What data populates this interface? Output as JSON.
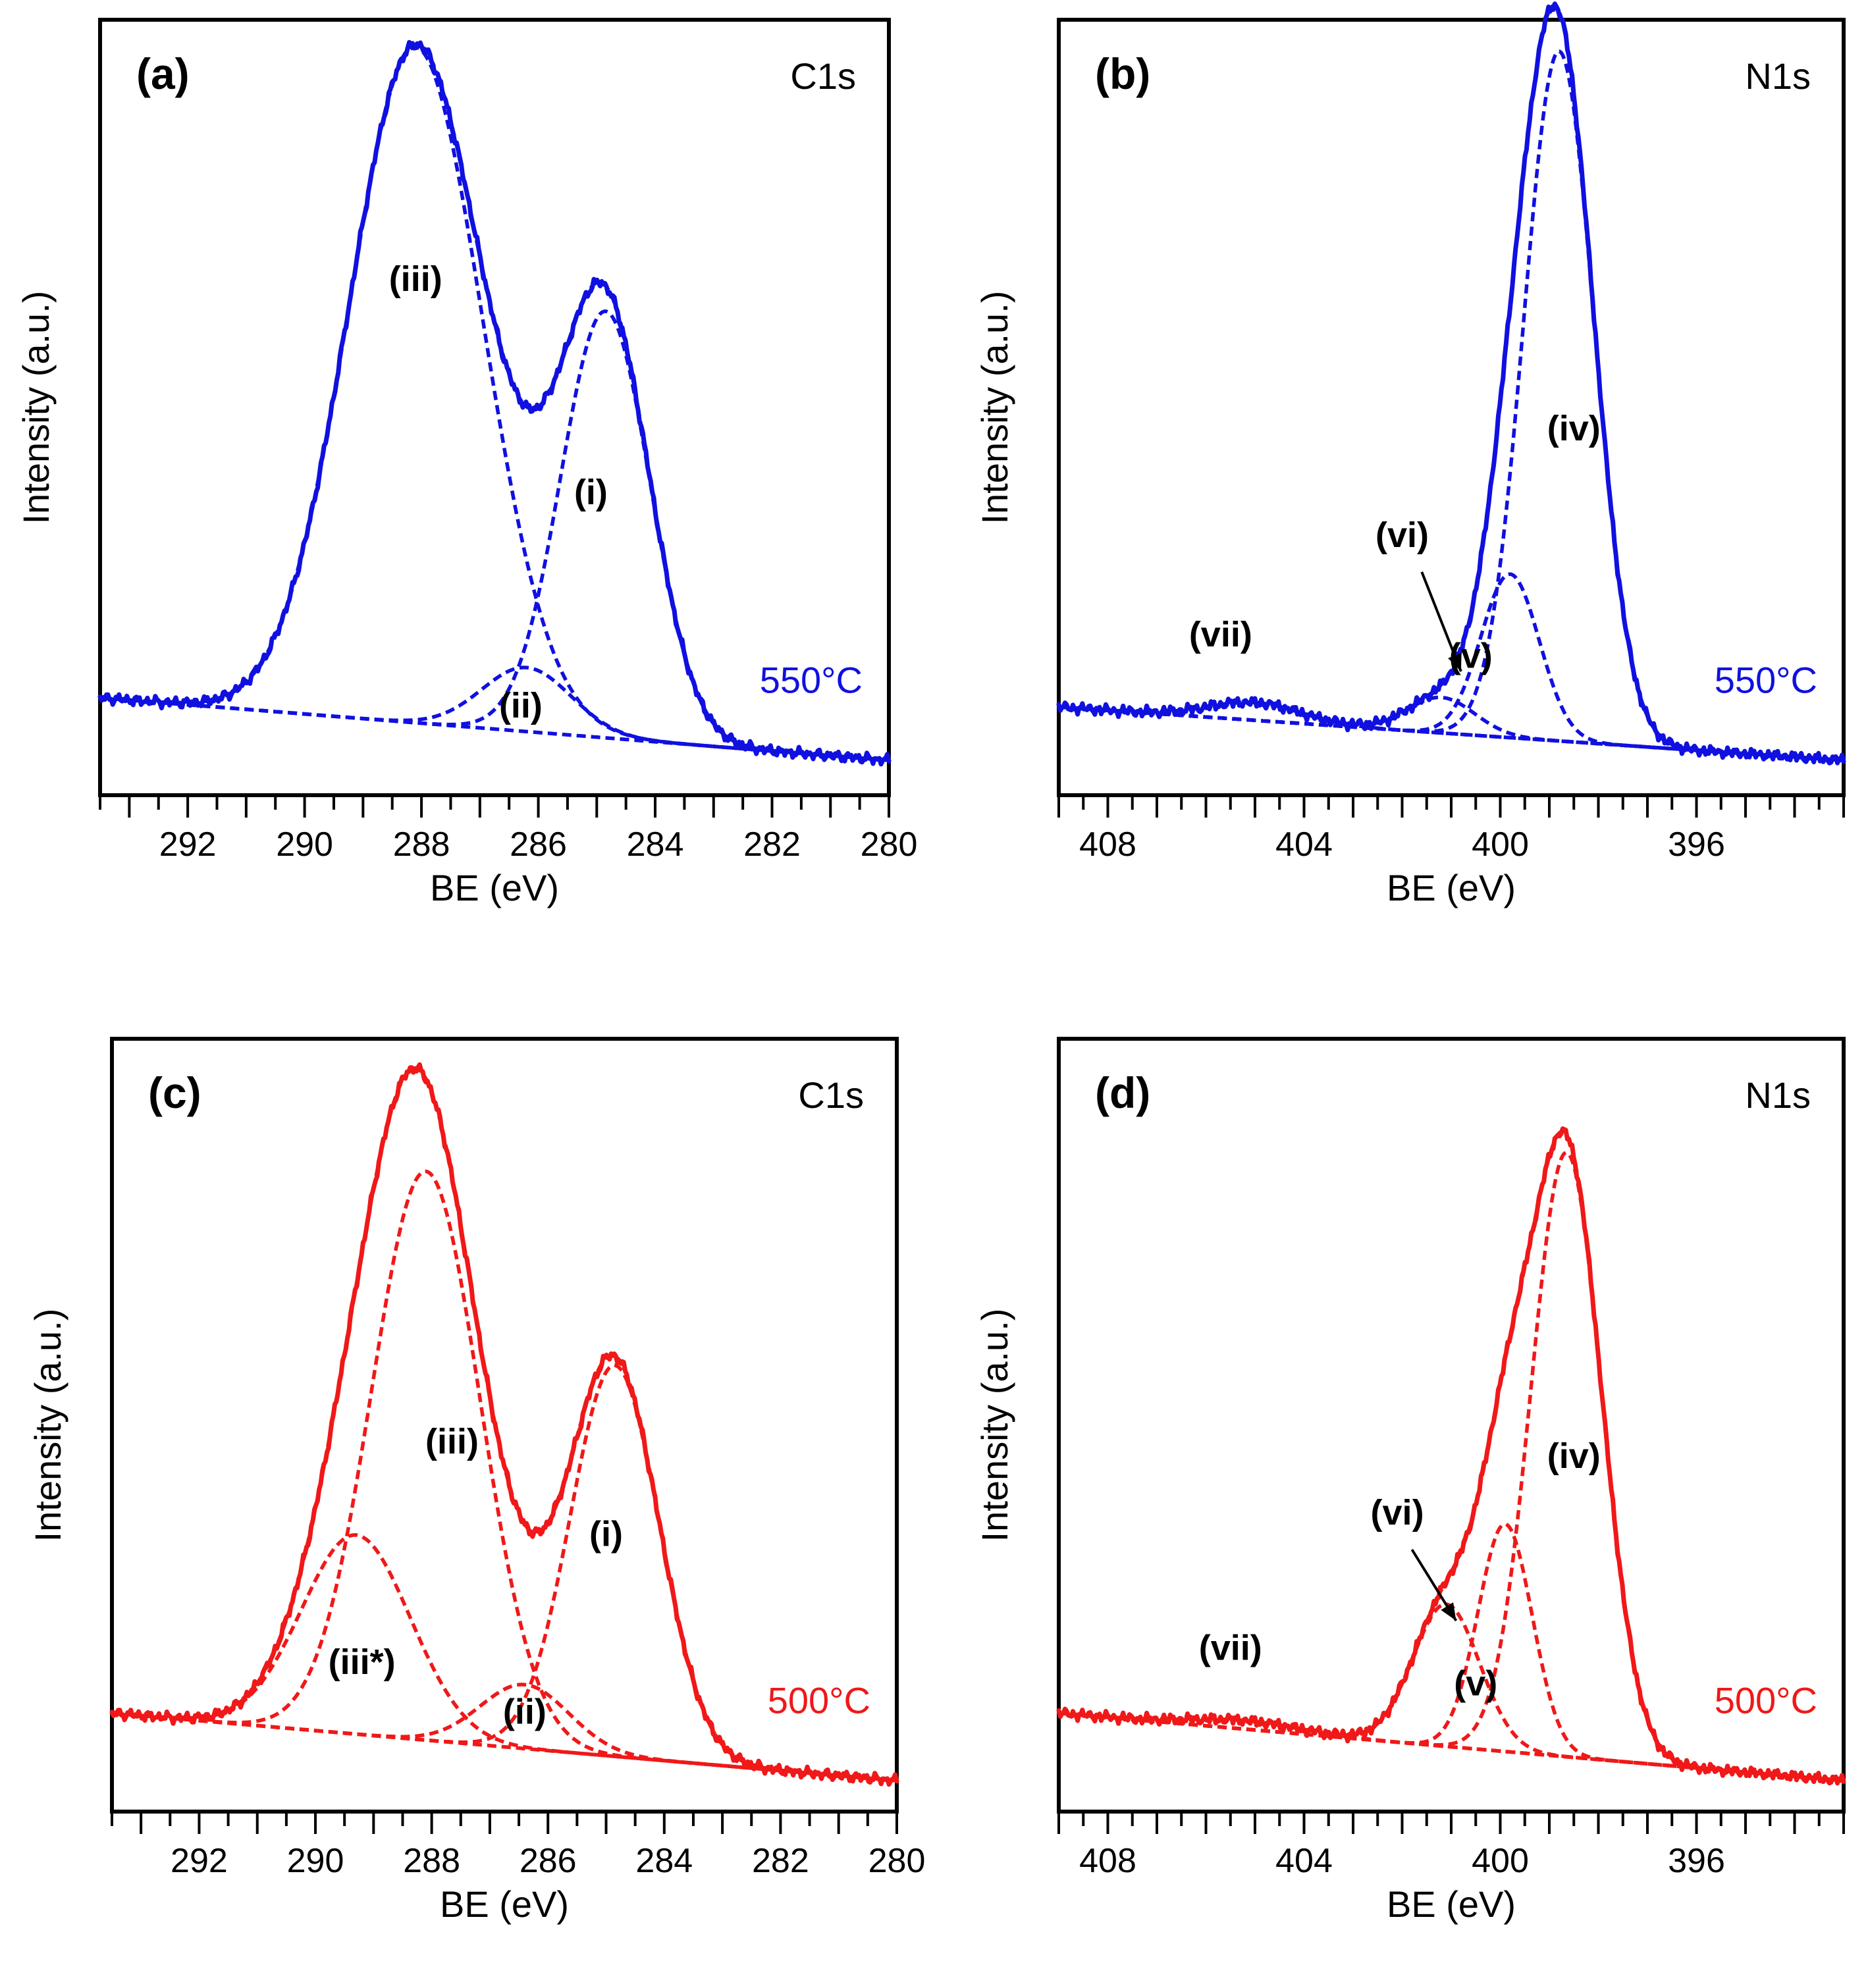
{
  "chart_data": [
    {
      "id": "a",
      "type": "line",
      "panel_label": "(a)",
      "spectrum": "C1s",
      "temperature": "550°C",
      "color": "#1010e0",
      "xlabel": "BE (eV)",
      "ylabel": "Intensity (a.u.)",
      "xlim": [
        293.5,
        280
      ],
      "xticks": [
        292,
        290,
        288,
        286,
        284,
        282,
        280
      ],
      "ylim": [
        0,
        1
      ],
      "baseline": {
        "left": 0.088,
        "right": 0.0
      },
      "components": [
        {
          "label": "(i)",
          "center": 284.85,
          "height": 0.6,
          "fwhm": 1.8
        },
        {
          "label": "(ii)",
          "center": 286.2,
          "height": 0.09,
          "fwhm": 1.8
        },
        {
          "label": "(iii)",
          "center": 288.1,
          "height": 0.95,
          "fwhm": 2.7
        }
      ],
      "annotations": [
        {
          "text": "(iii)",
          "x": 288.1,
          "y": 0.66
        },
        {
          "text": "(i)",
          "x": 285.1,
          "y": 0.36
        },
        {
          "text": "(ii)",
          "x": 286.3,
          "y": 0.06
        }
      ]
    },
    {
      "id": "b",
      "type": "line",
      "panel_label": "(b)",
      "spectrum": "N1s",
      "temperature": "550°C",
      "color": "#1010e0",
      "xlabel": "BE (eV)",
      "ylabel": "Intensity (a.u.)",
      "xlim": [
        409,
        393
      ],
      "xticks": [
        408,
        404,
        400,
        396
      ],
      "ylim": [
        0,
        1
      ],
      "baseline": {
        "left": 0.075,
        "right": 0.0
      },
      "components": [
        {
          "label": "(iv)",
          "center": 398.8,
          "height": 0.97,
          "fwhm": 1.7
        },
        {
          "label": "(v)",
          "center": 399.8,
          "height": 0.23,
          "fwhm": 1.4
        },
        {
          "label": "(vi)",
          "center": 401.2,
          "height": 0.05,
          "fwhm": 1.6
        },
        {
          "label": "(vii)",
          "center": 405.0,
          "height": 0.025,
          "fwhm": 2.2
        }
      ],
      "annotations": [
        {
          "text": "(iv)",
          "x": 398.5,
          "y": 0.45
        },
        {
          "text": "(vi)",
          "x": 402.0,
          "y": 0.3
        },
        {
          "text": "(v)",
          "x": 400.6,
          "y": 0.13
        },
        {
          "text": "(vii)",
          "x": 405.7,
          "y": 0.16
        }
      ],
      "arrow": {
        "from": [
          401.6,
          0.265
        ],
        "to": [
          400.8,
          0.125
        ]
      }
    },
    {
      "id": "c",
      "type": "line",
      "panel_label": "(c)",
      "spectrum": "C1s",
      "temperature": "500°C",
      "color": "#f01818",
      "xlabel": "BE (eV)",
      "ylabel": "Intensity (a.u.)",
      "xlim": [
        293.5,
        280
      ],
      "xticks": [
        292,
        290,
        288,
        286,
        284,
        282,
        280
      ],
      "ylim": [
        0,
        1
      ],
      "baseline": {
        "left": 0.095,
        "right": 0.0
      },
      "components": [
        {
          "label": "(i)",
          "center": 284.85,
          "height": 0.55,
          "fwhm": 1.8
        },
        {
          "label": "(ii)",
          "center": 286.4,
          "height": 0.09,
          "fwhm": 1.8
        },
        {
          "label": "(iii)",
          "center": 288.1,
          "height": 0.8,
          "fwhm": 2.2
        },
        {
          "label": "(iii*)",
          "center": 289.3,
          "height": 0.28,
          "fwhm": 2.2
        }
      ],
      "annotations": [
        {
          "text": "(iii)",
          "x": 287.65,
          "y": 0.46
        },
        {
          "text": "(i)",
          "x": 285.0,
          "y": 0.33
        },
        {
          "text": "(iii*)",
          "x": 289.2,
          "y": 0.15
        },
        {
          "text": "(ii)",
          "x": 286.4,
          "y": 0.08
        }
      ]
    },
    {
      "id": "d",
      "type": "line",
      "panel_label": "(d)",
      "spectrum": "N1s",
      "temperature": "500°C",
      "color": "#f01818",
      "xlabel": "BE (eV)",
      "ylabel": "Intensity (a.u.)",
      "xlim": [
        409,
        393
      ],
      "xticks": [
        408,
        404,
        400,
        396
      ],
      "ylim": [
        0,
        1
      ],
      "baseline": {
        "left": 0.095,
        "right": 0.0
      },
      "components": [
        {
          "label": "(iv)",
          "center": 398.65,
          "height": 0.85,
          "fwhm": 1.7
        },
        {
          "label": "(v)",
          "center": 399.9,
          "height": 0.32,
          "fwhm": 1.3
        },
        {
          "label": "(vi)",
          "center": 401.1,
          "height": 0.2,
          "fwhm": 1.6
        },
        {
          "label": "(vii)",
          "center": 405.2,
          "height": 0.012,
          "fwhm": 2.6
        }
      ],
      "annotations": [
        {
          "text": "(iv)",
          "x": 398.5,
          "y": 0.44
        },
        {
          "text": "(vi)",
          "x": 402.1,
          "y": 0.36
        },
        {
          "text": "(v)",
          "x": 400.5,
          "y": 0.12
        },
        {
          "text": "(vii)",
          "x": 405.5,
          "y": 0.17
        }
      ],
      "arrow": {
        "from": [
          401.8,
          0.325
        ],
        "to": [
          400.9,
          0.225
        ]
      }
    }
  ]
}
